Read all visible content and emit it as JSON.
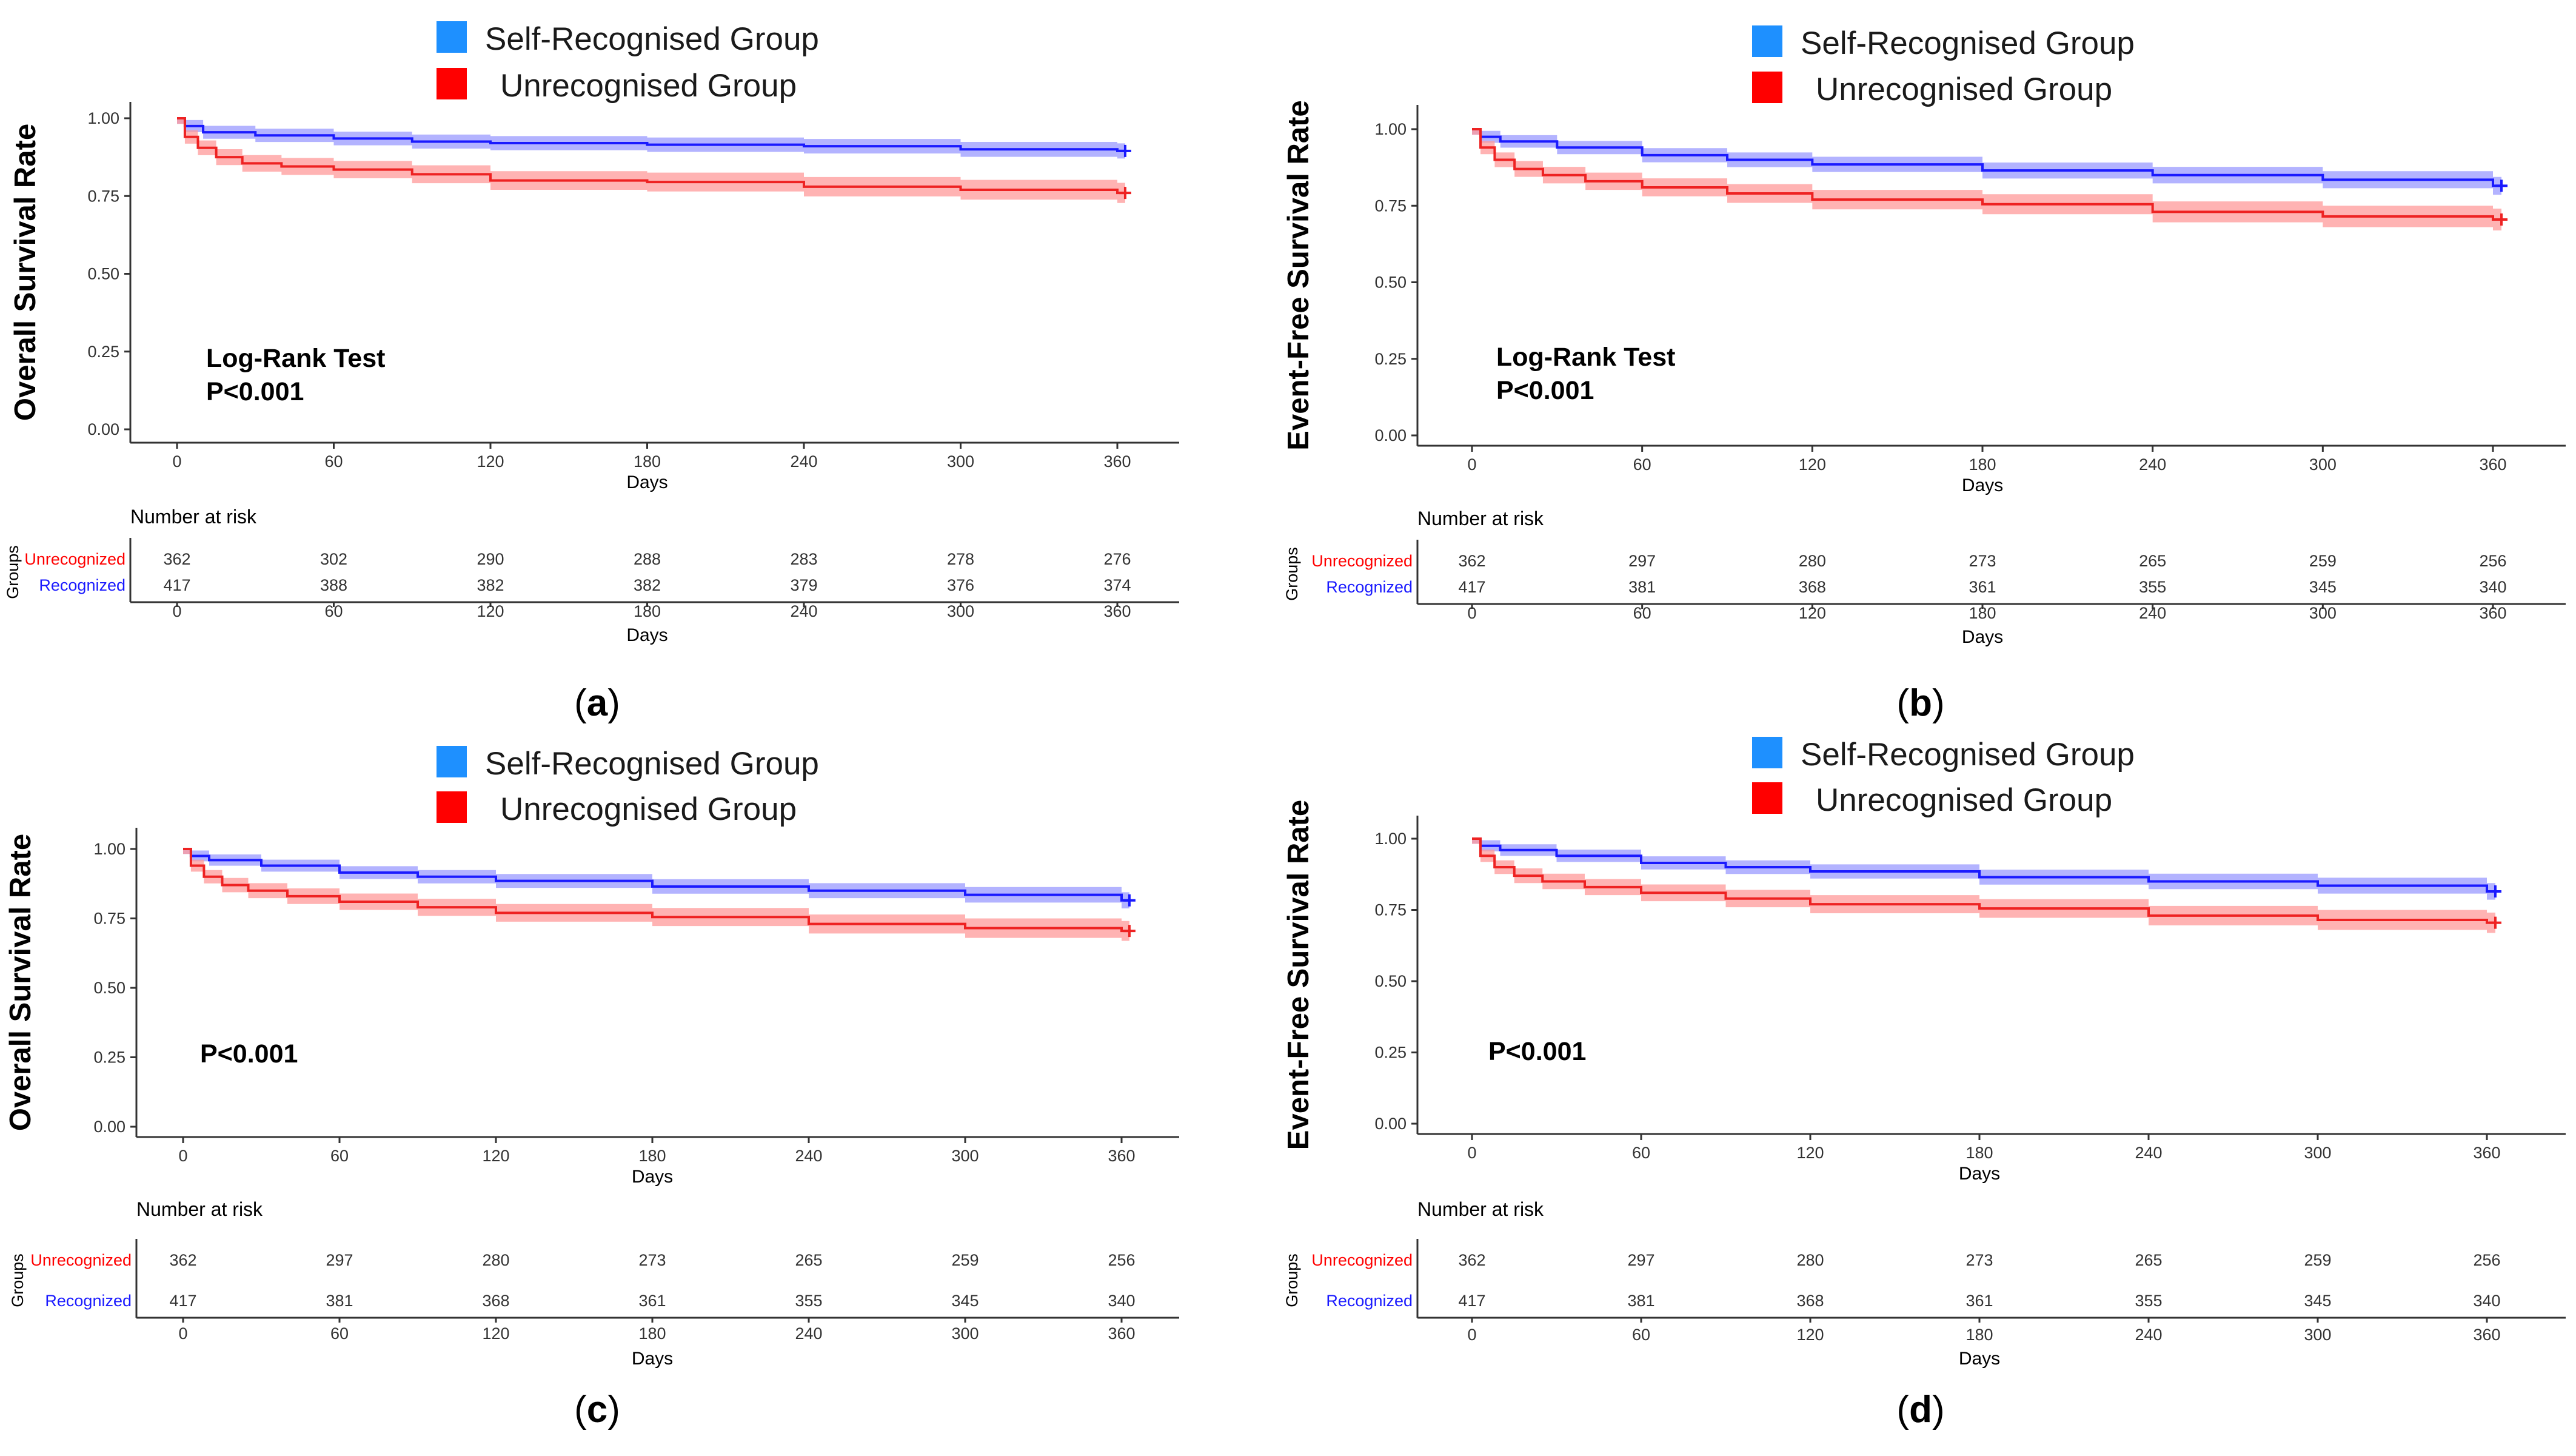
{
  "legend": {
    "self_recognised": "Self-Recognised Group",
    "unrecognised": "Unrecognised Group"
  },
  "colors": {
    "self_recognised": "#1E90FF",
    "unrecognised": "#FF0000",
    "curve_blue": "#1a1aff",
    "curve_red": "#ee2222",
    "band_blue": "#9999ff",
    "band_red": "#ff9999"
  },
  "chart_data": [
    {
      "type": "line",
      "panel": "a",
      "ylabel": "Overall Survival Rate",
      "xlabel": "Days",
      "yticks": [
        "0.00",
        "0.25",
        "0.50",
        "0.75",
        "1.00"
      ],
      "xticks": [
        "0",
        "60",
        "120",
        "180",
        "240",
        "300",
        "360"
      ],
      "xlim": [
        0,
        365
      ],
      "ylim": [
        0,
        1
      ],
      "stat_lines": [
        "Log-Rank Test",
        "P<0.001"
      ],
      "series": [
        {
          "name": "Self-Recognised Group",
          "x": [
            0,
            3,
            10,
            30,
            60,
            90,
            120,
            180,
            240,
            300,
            360
          ],
          "values": [
            1.0,
            0.975,
            0.955,
            0.945,
            0.935,
            0.925,
            0.92,
            0.915,
            0.91,
            0.9,
            0.895
          ]
        },
        {
          "name": "Unrecognised Group",
          "x": [
            0,
            3,
            8,
            15,
            25,
            40,
            60,
            90,
            120,
            180,
            240,
            300,
            360
          ],
          "values": [
            1.0,
            0.94,
            0.905,
            0.875,
            0.855,
            0.845,
            0.835,
            0.82,
            0.8,
            0.795,
            0.78,
            0.77,
            0.76
          ]
        }
      ],
      "risk_table": {
        "title": "Number at risk",
        "axis_title": "Groups",
        "xlabel": "Days",
        "rows": [
          {
            "label": "Unrecognized",
            "values": [
              "362",
              "302",
              "290",
              "288",
              "283",
              "278",
              "276"
            ]
          },
          {
            "label": "Recognized",
            "values": [
              "417",
              "388",
              "382",
              "382",
              "379",
              "376",
              "374"
            ]
          }
        ]
      },
      "panel_label": "a"
    },
    {
      "type": "line",
      "panel": "b",
      "ylabel": "Event-Free Survival Rate",
      "xlabel": "Days",
      "yticks": [
        "0.00",
        "0.25",
        "0.50",
        "0.75",
        "1.00"
      ],
      "xticks": [
        "0",
        "60",
        "120",
        "180",
        "240",
        "300",
        "360"
      ],
      "xlim": [
        0,
        365
      ],
      "ylim": [
        0,
        1
      ],
      "stat_lines": [
        "Log-Rank Test",
        "P<0.001"
      ],
      "series": [
        {
          "name": "Self-Recognised Group",
          "x": [
            0,
            3,
            10,
            30,
            60,
            90,
            120,
            180,
            240,
            300,
            360
          ],
          "values": [
            1.0,
            0.975,
            0.96,
            0.94,
            0.915,
            0.9,
            0.885,
            0.865,
            0.85,
            0.835,
            0.815
          ]
        },
        {
          "name": "Unrecognised Group",
          "x": [
            0,
            3,
            8,
            15,
            25,
            40,
            60,
            90,
            120,
            180,
            240,
            300,
            360
          ],
          "values": [
            1.0,
            0.94,
            0.9,
            0.87,
            0.85,
            0.83,
            0.81,
            0.79,
            0.77,
            0.755,
            0.73,
            0.715,
            0.705
          ]
        }
      ],
      "risk_table": {
        "title": "Number at risk",
        "axis_title": "Groups",
        "xlabel": "Days",
        "rows": [
          {
            "label": "Unrecognized",
            "values": [
              "362",
              "297",
              "280",
              "273",
              "265",
              "259",
              "256"
            ]
          },
          {
            "label": "Recognized",
            "values": [
              "417",
              "381",
              "368",
              "361",
              "355",
              "345",
              "340"
            ]
          }
        ]
      },
      "panel_label": "b"
    },
    {
      "type": "line",
      "panel": "c",
      "ylabel": "Overall Survival Rate",
      "xlabel": "Days",
      "yticks": [
        "0.00",
        "0.25",
        "0.50",
        "0.75",
        "1.00"
      ],
      "xticks": [
        "0",
        "60",
        "120",
        "180",
        "240",
        "300",
        "360"
      ],
      "xlim": [
        0,
        365
      ],
      "ylim": [
        0,
        1
      ],
      "stat_lines": [
        "P<0.001"
      ],
      "series": [
        {
          "name": "Self-Recognised Group",
          "x": [
            0,
            3,
            10,
            30,
            60,
            90,
            120,
            180,
            240,
            300,
            360
          ],
          "values": [
            1.0,
            0.975,
            0.96,
            0.94,
            0.915,
            0.9,
            0.885,
            0.865,
            0.85,
            0.835,
            0.815
          ]
        },
        {
          "name": "Unrecognised Group",
          "x": [
            0,
            3,
            8,
            15,
            25,
            40,
            60,
            90,
            120,
            180,
            240,
            300,
            360
          ],
          "values": [
            1.0,
            0.94,
            0.9,
            0.87,
            0.85,
            0.83,
            0.81,
            0.79,
            0.77,
            0.755,
            0.73,
            0.715,
            0.705
          ]
        }
      ],
      "risk_table": {
        "title": "Number at risk",
        "axis_title": "Groups",
        "xlabel": "Days",
        "rows": [
          {
            "label": "Unrecognized",
            "values": [
              "362",
              "297",
              "280",
              "273",
              "265",
              "259",
              "256"
            ]
          },
          {
            "label": "Recognized",
            "values": [
              "417",
              "381",
              "368",
              "361",
              "355",
              "345",
              "340"
            ]
          }
        ]
      },
      "panel_label": "c"
    },
    {
      "type": "line",
      "panel": "d",
      "ylabel": "Event-Free Survival Rate",
      "xlabel": "Days",
      "yticks": [
        "0.00",
        "0.25",
        "0.50",
        "0.75",
        "1.00"
      ],
      "xticks": [
        "0",
        "60",
        "120",
        "180",
        "240",
        "300",
        "360"
      ],
      "xlim": [
        0,
        365
      ],
      "ylim": [
        0,
        1
      ],
      "stat_lines": [
        "P<0.001"
      ],
      "series": [
        {
          "name": "Self-Recognised Group",
          "x": [
            0,
            3,
            10,
            30,
            60,
            90,
            120,
            180,
            240,
            300,
            360
          ],
          "values": [
            1.0,
            0.975,
            0.96,
            0.94,
            0.915,
            0.9,
            0.885,
            0.865,
            0.85,
            0.835,
            0.815
          ]
        },
        {
          "name": "Unrecognised Group",
          "x": [
            0,
            3,
            8,
            15,
            25,
            40,
            60,
            90,
            120,
            180,
            240,
            300,
            360
          ],
          "values": [
            1.0,
            0.94,
            0.9,
            0.87,
            0.85,
            0.83,
            0.81,
            0.79,
            0.77,
            0.755,
            0.73,
            0.715,
            0.705
          ]
        }
      ],
      "risk_table": {
        "title": "Number at risk",
        "axis_title": "Groups",
        "xlabel": "Days",
        "rows": [
          {
            "label": "Unrecognized",
            "values": [
              "362",
              "297",
              "280",
              "273",
              "265",
              "259",
              "256"
            ]
          },
          {
            "label": "Recognized",
            "values": [
              "417",
              "381",
              "368",
              "361",
              "355",
              "345",
              "340"
            ]
          }
        ]
      },
      "panel_label": "d"
    }
  ]
}
